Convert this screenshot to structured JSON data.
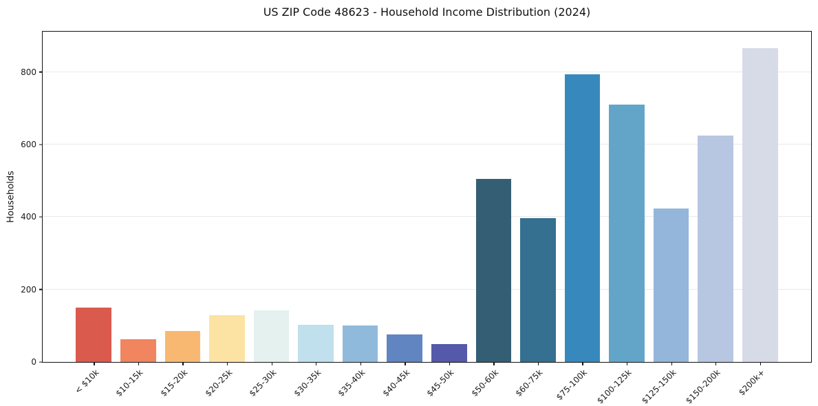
{
  "chart_data": {
    "type": "bar",
    "title": "US ZIP Code 48623 - Household Income Distribution (2024)",
    "ylabel": "Households",
    "xlabel": "",
    "categories": [
      "< $10k",
      "$10-15k",
      "$15-20k",
      "$20-25k",
      "$25-30k",
      "$30-35k",
      "$35-40k",
      "$40-45k",
      "$45-50k",
      "$50-60k",
      "$60-75k",
      "$75-100k",
      "$100-125k",
      "$125-150k",
      "$150-200k",
      "$200k+"
    ],
    "values": [
      150,
      62,
      86,
      130,
      143,
      102,
      100,
      76,
      49,
      505,
      396,
      794,
      710,
      423,
      624,
      865
    ],
    "bar_colors": [
      "#db5a4e",
      "#f0855f",
      "#f9b872",
      "#fce3a3",
      "#e5f1ef",
      "#bfe0ec",
      "#90badb",
      "#6085c1",
      "#5459aa",
      "#345e74",
      "#367090",
      "#3789bd",
      "#62a5c9",
      "#93b6da",
      "#b7c7e1",
      "#d7dae7"
    ],
    "ylim": [
      0,
      911
    ],
    "yticks": [
      0,
      200,
      400,
      600,
      800
    ],
    "grid": "horizontal-only",
    "legend": "none"
  },
  "colors": {
    "background": "#ffffff",
    "gridline": "#e9e9e9",
    "spine": "#0f0f0f",
    "text": "#1a1a1a"
  }
}
